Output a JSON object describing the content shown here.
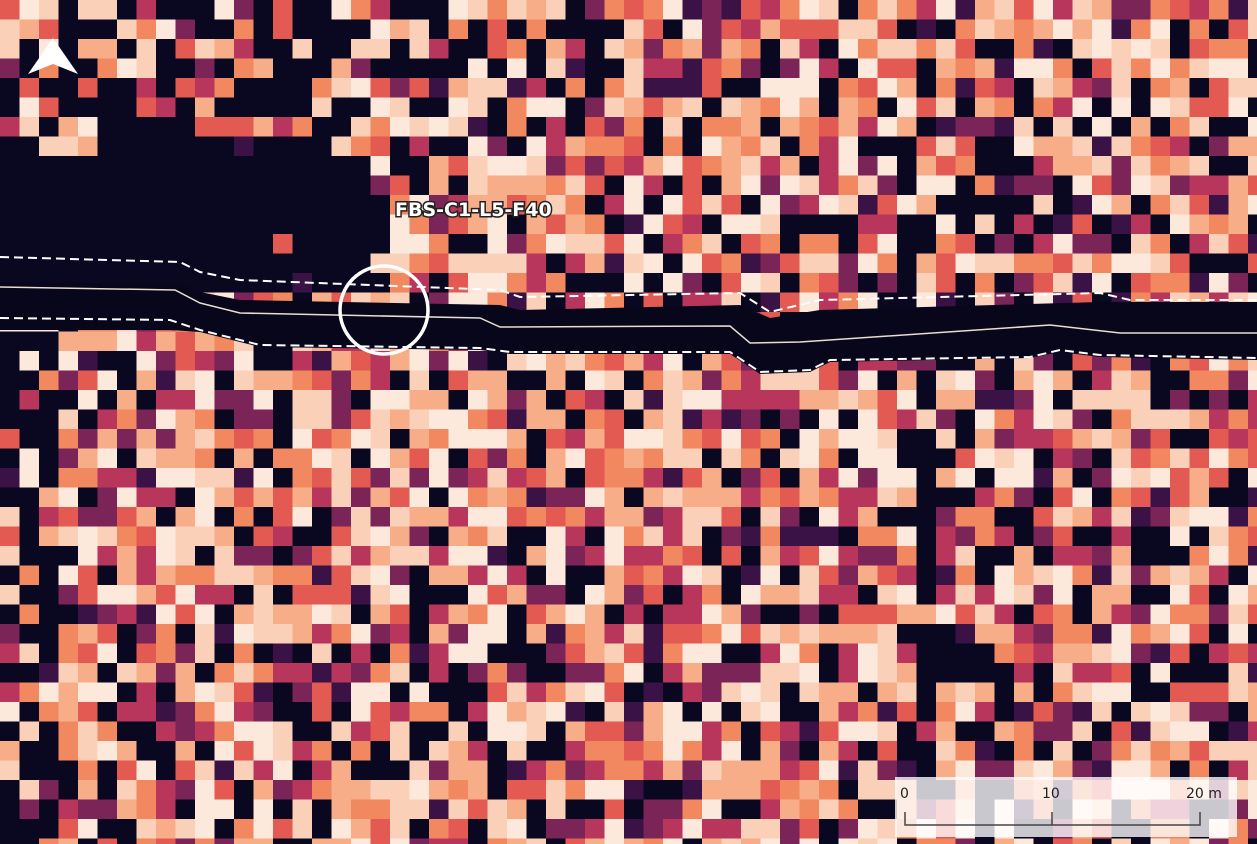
{
  "feature_label": "FBS-C1-L5-F40",
  "scale_bar": {
    "labels": [
      "0",
      "10",
      "20 m"
    ]
  }
}
